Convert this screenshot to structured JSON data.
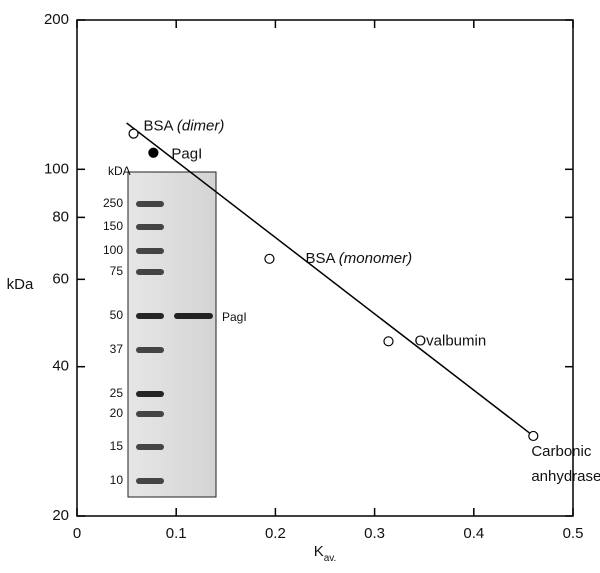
{
  "chart_data": {
    "type": "scatter",
    "y_scale": "log",
    "xlabel": {
      "text": "K",
      "sub": "av."
    },
    "ylabel": "kDa",
    "x": [
      0.057,
      0.077,
      0.194,
      0.314,
      0.46
    ],
    "values": [
      118,
      108,
      66,
      45,
      29
    ],
    "filled": [
      false,
      true,
      false,
      false,
      false
    ],
    "labels": [
      {
        "text": "BSA",
        "note": "(dimer)"
      },
      {
        "text": "PagI"
      },
      {
        "text": "BSA",
        "note": "(monomer)"
      },
      {
        "text": "Ovalbumin"
      },
      {
        "text": "Carbonic",
        "line2": "anhydrase"
      }
    ],
    "fit_line": {
      "x": [
        0.05,
        0.46
      ],
      "values": [
        124,
        29
      ]
    },
    "xlim": [
      0,
      0.5
    ],
    "xticks": [
      0,
      0.1,
      0.2,
      0.3,
      0.4,
      0.5
    ],
    "ylim": [
      20,
      200
    ],
    "yticks": [
      20,
      40,
      60,
      80,
      100,
      200
    ],
    "color": "#000000",
    "inset": {
      "title": "kDA",
      "ladder": [
        250,
        150,
        100,
        75,
        50,
        37,
        25,
        20,
        15,
        10
      ],
      "lane_label": "PagI"
    }
  }
}
